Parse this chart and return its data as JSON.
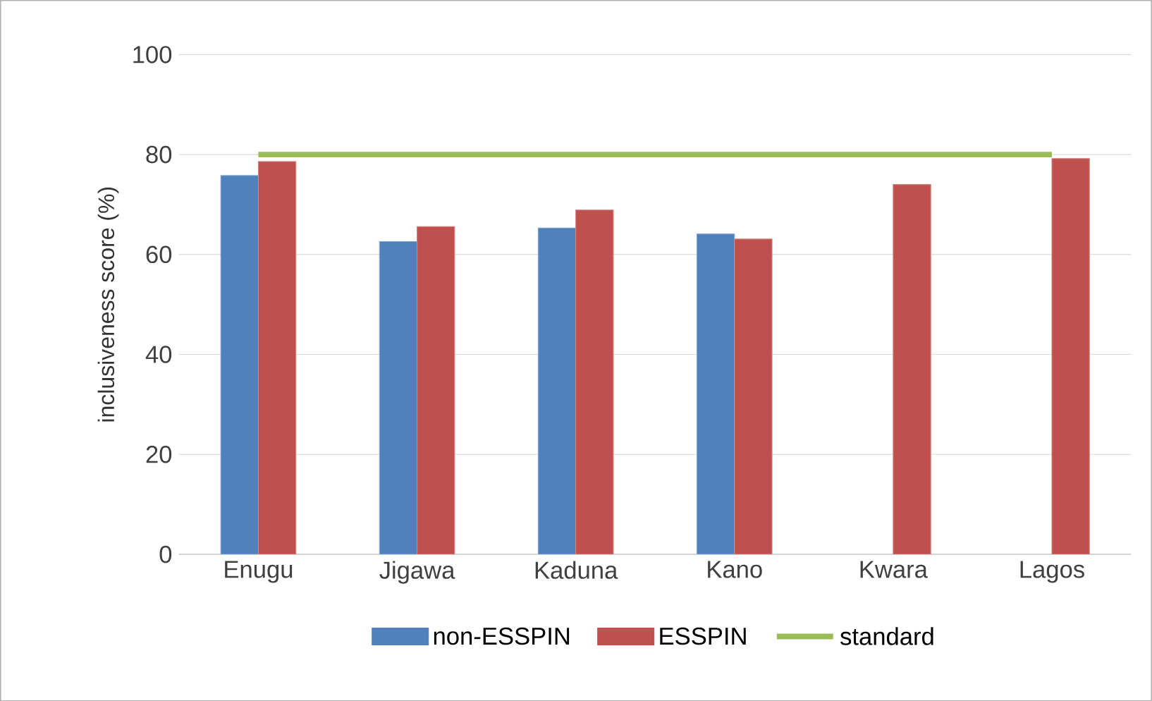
{
  "chart_data": {
    "type": "bar",
    "ylabel": "inclusiveness score (%)",
    "categories": [
      "Enugu",
      "Jigawa",
      "Kaduna",
      "Kano",
      "Kwara",
      "Lagos"
    ],
    "series": [
      {
        "name": "non-ESSPIN",
        "color": "#4f81bd",
        "values": [
          75.8,
          62.6,
          65.3,
          64.1,
          null,
          null
        ]
      },
      {
        "name": "ESSPIN",
        "color": "#c0504d",
        "values": [
          78.6,
          65.6,
          68.9,
          63.1,
          74.0,
          79.2
        ]
      },
      {
        "name": "standard",
        "type": "line",
        "color": "#9bbb59",
        "values": [
          80,
          80,
          80,
          80,
          80,
          80
        ]
      }
    ],
    "ylim": [
      0,
      100
    ],
    "yticks": [
      0,
      20,
      40,
      60,
      80,
      100
    ],
    "grid": "y",
    "legend": "bottom"
  }
}
